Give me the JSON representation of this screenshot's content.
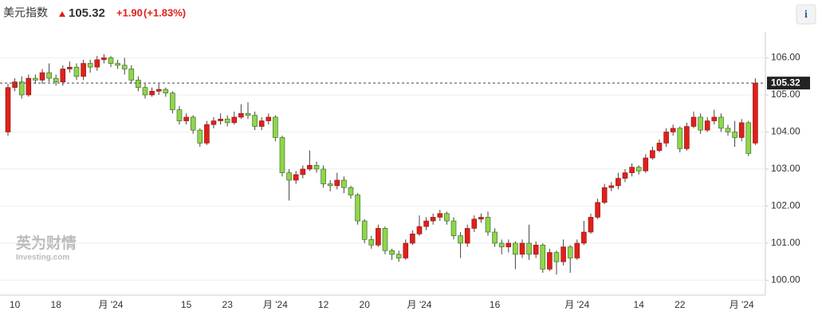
{
  "header": {
    "title": "美元指数",
    "price": "105.32",
    "change": "+1.90",
    "change_pct": "(+1.83%)",
    "info": "i"
  },
  "watermark": {
    "brand": "英为财情",
    "site": "Investing.com"
  },
  "chart_data": {
    "type": "candlestick",
    "categories": [
      null,
      "10",
      null,
      null,
      null,
      null,
      null,
      "18",
      null,
      null,
      null,
      null,
      null,
      null,
      null,
      "月 '24",
      null,
      null,
      null,
      null,
      null,
      null,
      null,
      null,
      null,
      null,
      "15",
      null,
      null,
      null,
      null,
      null,
      "23",
      null,
      null,
      null,
      null,
      null,
      null,
      "月 '24",
      null,
      null,
      null,
      null,
      null,
      null,
      "12",
      null,
      null,
      null,
      null,
      null,
      "20",
      null,
      null,
      null,
      null,
      null,
      null,
      null,
      "月 '24",
      null,
      null,
      null,
      null,
      null,
      null,
      null,
      null,
      null,
      null,
      "16",
      null,
      null,
      null,
      null,
      null,
      null,
      null,
      null,
      null,
      null,
      null,
      "月 '24",
      null,
      null,
      null,
      null,
      null,
      null,
      null,
      null,
      "14",
      null,
      null,
      null,
      null,
      null,
      "22",
      null,
      null,
      null,
      null,
      null,
      null,
      null,
      null,
      "月 '24",
      null,
      null
    ],
    "open": [
      104.0,
      105.2,
      105.35,
      105.0,
      105.45,
      105.4,
      105.6,
      105.45,
      105.35,
      105.7,
      105.75,
      105.5,
      105.85,
      105.75,
      105.95,
      106.0,
      105.85,
      105.8,
      105.7,
      105.4,
      105.2,
      105.0,
      105.1,
      105.15,
      105.05,
      104.6,
      104.3,
      104.4,
      104.05,
      103.7,
      104.2,
      104.3,
      104.35,
      104.25,
      104.4,
      104.5,
      104.45,
      104.15,
      104.3,
      104.4,
      103.85,
      102.9,
      102.7,
      102.85,
      103.0,
      103.1,
      103.0,
      102.6,
      102.55,
      102.7,
      102.5,
      102.3,
      101.6,
      101.1,
      100.95,
      101.4,
      100.8,
      100.7,
      100.6,
      101.0,
      101.25,
      101.45,
      101.6,
      101.7,
      101.8,
      101.6,
      101.2,
      101.0,
      101.4,
      101.65,
      101.7,
      101.3,
      101.0,
      100.9,
      101.0,
      100.7,
      101.0,
      100.7,
      100.95,
      100.3,
      100.75,
      100.5,
      100.9,
      100.6,
      101.0,
      101.3,
      101.7,
      102.1,
      102.5,
      102.55,
      102.75,
      102.9,
      103.05,
      102.95,
      103.3,
      103.5,
      103.7,
      104.0,
      104.1,
      103.55,
      104.15,
      104.4,
      104.05,
      104.3,
      104.4,
      104.1,
      104.0,
      103.85,
      104.25,
      103.7
    ],
    "high": [
      105.3,
      105.45,
      105.5,
      105.55,
      105.55,
      105.7,
      105.85,
      105.55,
      105.8,
      105.9,
      105.85,
      105.95,
      105.95,
      106.05,
      106.1,
      106.05,
      105.95,
      106.0,
      105.8,
      105.5,
      105.3,
      105.2,
      105.3,
      105.2,
      105.1,
      104.7,
      104.5,
      104.45,
      104.1,
      104.3,
      104.4,
      104.5,
      104.45,
      104.55,
      104.75,
      104.8,
      104.55,
      104.4,
      104.5,
      104.45,
      103.9,
      103.0,
      102.95,
      103.1,
      103.5,
      103.2,
      103.1,
      102.7,
      102.9,
      102.8,
      102.55,
      102.35,
      101.65,
      101.2,
      101.5,
      101.45,
      100.85,
      100.8,
      101.1,
      101.35,
      101.75,
      101.7,
      101.8,
      101.9,
      101.85,
      101.7,
      101.3,
      101.5,
      101.75,
      101.8,
      101.85,
      101.4,
      101.1,
      101.1,
      101.05,
      101.1,
      101.5,
      101.05,
      101.0,
      100.85,
      100.8,
      101.1,
      100.95,
      101.1,
      101.6,
      101.8,
      102.2,
      102.6,
      102.65,
      102.9,
      103.0,
      103.15,
      103.1,
      103.4,
      103.6,
      103.8,
      104.1,
      104.2,
      104.15,
      104.25,
      104.55,
      104.5,
      104.4,
      104.6,
      104.5,
      104.2,
      104.3,
      104.35,
      104.3,
      105.45
    ],
    "low": [
      103.9,
      105.1,
      104.9,
      104.95,
      105.3,
      105.3,
      105.35,
      105.25,
      105.25,
      105.6,
      105.4,
      105.4,
      105.6,
      105.65,
      105.85,
      105.75,
      105.7,
      105.55,
      105.3,
      105.1,
      104.9,
      104.95,
      105.0,
      104.95,
      104.5,
      104.2,
      104.2,
      103.95,
      103.6,
      103.65,
      104.1,
      104.2,
      104.15,
      104.2,
      104.35,
      104.35,
      104.05,
      104.05,
      104.2,
      103.75,
      102.8,
      102.15,
      102.6,
      102.75,
      102.95,
      102.9,
      102.5,
      102.4,
      102.45,
      102.35,
      102.2,
      101.5,
      101.0,
      100.85,
      100.9,
      100.7,
      100.55,
      100.5,
      100.55,
      100.95,
      101.2,
      101.35,
      101.5,
      101.6,
      101.5,
      101.1,
      100.6,
      100.9,
      101.3,
      101.55,
      101.2,
      100.9,
      100.7,
      100.75,
      100.3,
      100.6,
      100.55,
      100.6,
      100.2,
      100.25,
      100.15,
      100.4,
      100.2,
      100.55,
      100.95,
      101.25,
      101.65,
      102.05,
      102.4,
      102.45,
      102.65,
      102.8,
      102.85,
      102.9,
      103.25,
      103.45,
      103.6,
      103.9,
      103.45,
      103.5,
      104.1,
      103.95,
      104.0,
      104.2,
      104.0,
      103.9,
      103.6,
      103.75,
      103.35,
      103.65
    ],
    "close": [
      105.2,
      105.35,
      105.0,
      105.45,
      105.4,
      105.6,
      105.45,
      105.35,
      105.7,
      105.75,
      105.5,
      105.85,
      105.75,
      105.95,
      106.0,
      105.85,
      105.8,
      105.7,
      105.4,
      105.2,
      105.0,
      105.1,
      105.15,
      105.05,
      104.6,
      104.3,
      104.4,
      104.05,
      103.7,
      104.2,
      104.3,
      104.35,
      104.25,
      104.4,
      104.5,
      104.45,
      104.15,
      104.3,
      104.4,
      103.85,
      102.9,
      102.7,
      102.85,
      103.0,
      103.1,
      103.0,
      102.6,
      102.55,
      102.7,
      102.5,
      102.3,
      101.6,
      101.1,
      100.95,
      101.4,
      100.8,
      100.7,
      100.6,
      101.0,
      101.25,
      101.45,
      101.6,
      101.7,
      101.8,
      101.6,
      101.2,
      101.0,
      101.4,
      101.65,
      101.7,
      101.3,
      101.0,
      100.9,
      101.0,
      100.7,
      101.0,
      100.7,
      100.95,
      100.3,
      100.75,
      100.5,
      100.9,
      100.6,
      101.0,
      101.3,
      101.7,
      102.1,
      102.5,
      102.55,
      102.75,
      102.9,
      103.05,
      102.95,
      103.3,
      103.5,
      103.7,
      104.0,
      104.1,
      103.55,
      104.15,
      104.4,
      104.05,
      104.3,
      104.4,
      104.1,
      104.0,
      103.85,
      104.25,
      103.42,
      105.32
    ],
    "up_color": "#e0201b",
    "down_color": "#8ed64b",
    "ylim": [
      99.6,
      106.7
    ],
    "yticks": [
      {
        "value": 100,
        "label": "100.00"
      },
      {
        "value": 101,
        "label": "101.00"
      },
      {
        "value": 102,
        "label": "102.00"
      },
      {
        "value": 103,
        "label": "103.00"
      },
      {
        "value": 104,
        "label": "104.00"
      },
      {
        "value": 105,
        "label": "105.00"
      },
      {
        "value": 106,
        "label": "106.00"
      }
    ],
    "grid": true,
    "last_label": {
      "value": 105.32,
      "label": "105.32"
    }
  }
}
